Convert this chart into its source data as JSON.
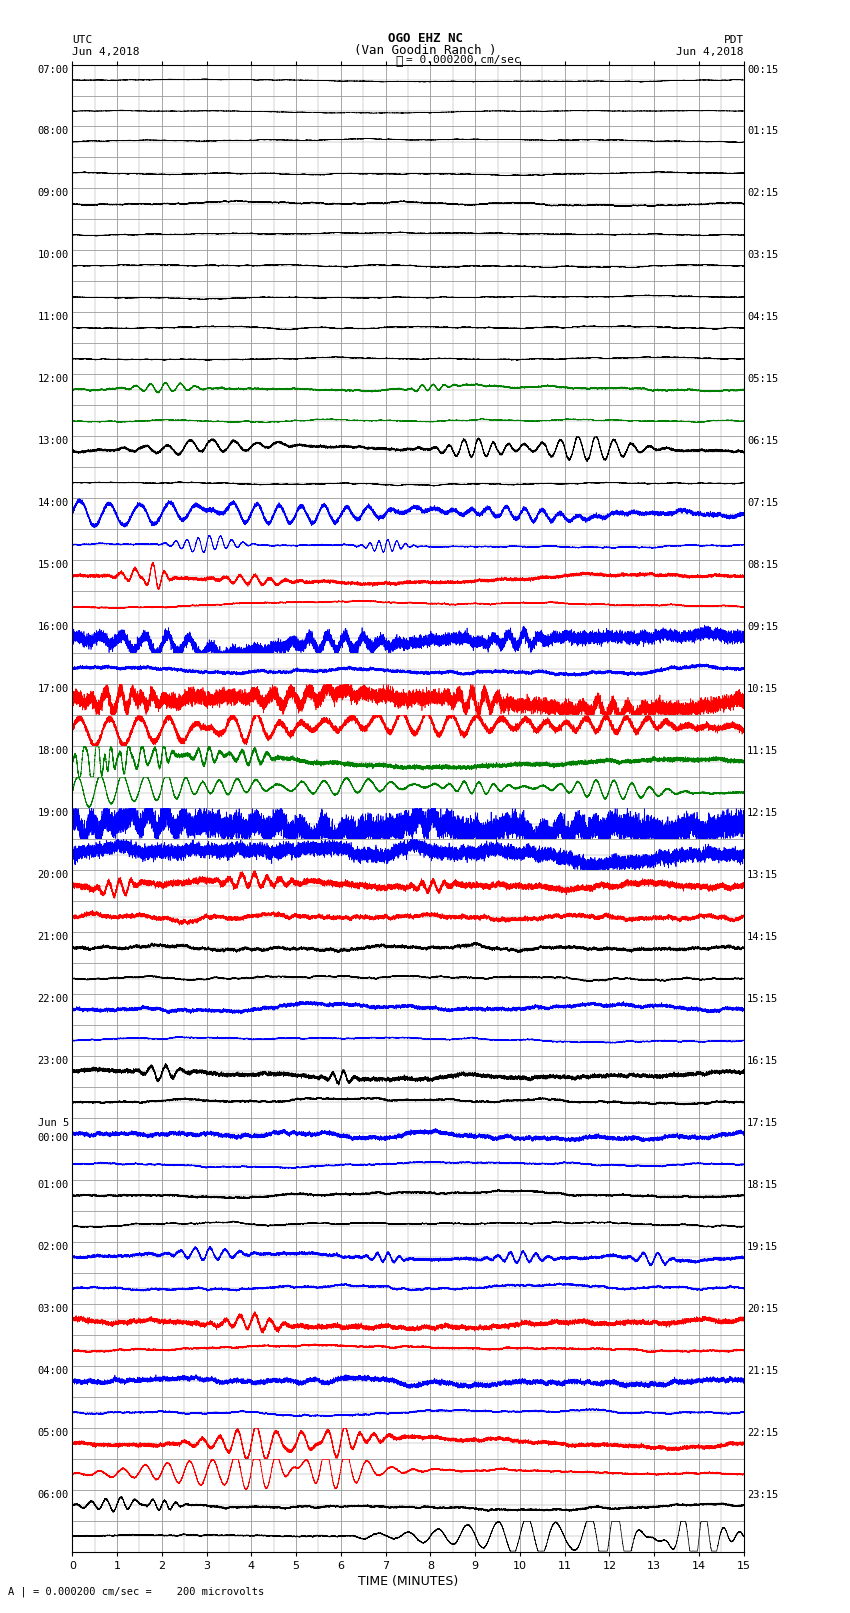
{
  "title_line1": "OGO EHZ NC",
  "title_line2": "(Van Goodin Ranch )",
  "title_scale": "I = 0.000200 cm/sec",
  "label_left_top": "UTC",
  "label_left_date": "Jun 4,2018",
  "label_right_top": "PDT",
  "label_right_date": "Jun 4,2018",
  "xlabel": "TIME (MINUTES)",
  "footer": "A | = 0.000200 cm/sec =    200 microvolts",
  "utc_labels": [
    "07:00",
    "08:00",
    "09:00",
    "10:00",
    "11:00",
    "12:00",
    "13:00",
    "14:00",
    "15:00",
    "16:00",
    "17:00",
    "18:00",
    "19:00",
    "20:00",
    "21:00",
    "22:00",
    "23:00",
    "Jun 5\n00:00",
    "01:00",
    "02:00",
    "03:00",
    "04:00",
    "05:00",
    "06:00"
  ],
  "pdt_labels": [
    "00:15",
    "01:15",
    "02:15",
    "03:15",
    "04:15",
    "05:15",
    "06:15",
    "07:15",
    "08:15",
    "09:15",
    "10:15",
    "11:15",
    "12:15",
    "13:15",
    "14:15",
    "15:15",
    "16:15",
    "17:15",
    "18:15",
    "19:15",
    "20:15",
    "21:15",
    "22:15",
    "23:15"
  ],
  "num_rows": 48,
  "minutes": 15,
  "bg_color": "#ffffff",
  "grid_color": "#999999",
  "colors_cycle": [
    "black",
    "blue",
    "red",
    "green"
  ],
  "row_colors": [
    "black",
    "black",
    "black",
    "black",
    "black",
    "black",
    "black",
    "black",
    "black",
    "black",
    "green",
    "green",
    "black",
    "black",
    "blue",
    "blue",
    "red",
    "red",
    "blue",
    "blue",
    "red",
    "red",
    "green",
    "green",
    "blue",
    "blue",
    "red",
    "red",
    "black",
    "black",
    "blue",
    "blue",
    "black",
    "black",
    "blue",
    "blue",
    "black",
    "black",
    "blue",
    "blue",
    "red",
    "red",
    "blue",
    "blue",
    "red",
    "red",
    "black",
    "black"
  ],
  "row_amplitudes": [
    0.05,
    0.05,
    0.05,
    0.05,
    0.08,
    0.05,
    0.05,
    0.05,
    0.05,
    0.05,
    0.1,
    0.05,
    0.12,
    0.05,
    0.15,
    0.08,
    0.2,
    0.12,
    0.35,
    0.15,
    0.4,
    0.2,
    0.25,
    0.15,
    0.45,
    0.35,
    0.18,
    0.12,
    0.1,
    0.08,
    0.15,
    0.1,
    0.18,
    0.1,
    0.15,
    0.1,
    0.12,
    0.08,
    0.15,
    0.1,
    0.18,
    0.12,
    0.15,
    0.1,
    0.2,
    0.12,
    0.12,
    0.08
  ],
  "sps": 25,
  "title_fontsize": 9,
  "label_fontsize": 7.5,
  "tick_fontsize": 8
}
